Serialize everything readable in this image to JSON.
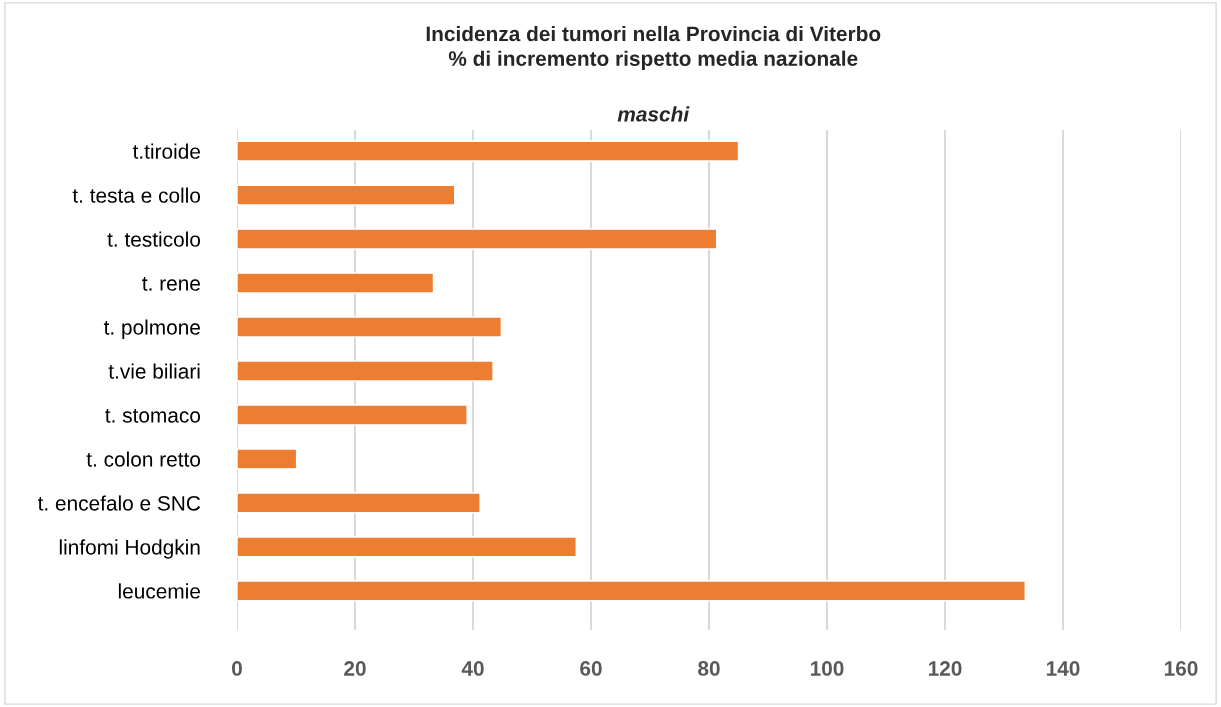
{
  "chart_data": {
    "type": "bar",
    "orientation": "horizontal",
    "title": "Incidenza dei tumori nella Provincia di Viterbo\n% di incremento rispetto media nazionale",
    "subtitle": "maschi",
    "categories": [
      "t.tiroide",
      "t. testa e collo",
      "t. testicolo",
      "t. rene",
      "t. polmone",
      "t.vie biliari",
      "t. stomaco",
      "t. colon retto",
      "t. encefalo e SNC",
      "linfomi Hodgkin",
      "leucemie"
    ],
    "values": [
      85.0,
      36.9,
      81.3,
      33.3,
      44.8,
      43.4,
      39.0,
      10.1,
      41.2,
      57.5,
      133.6
    ],
    "color": "#ed7d31",
    "xlim": [
      0,
      160
    ],
    "xticks": [
      0,
      20,
      40,
      60,
      80,
      100,
      120,
      140,
      160
    ],
    "grid": "x",
    "legend": false
  }
}
